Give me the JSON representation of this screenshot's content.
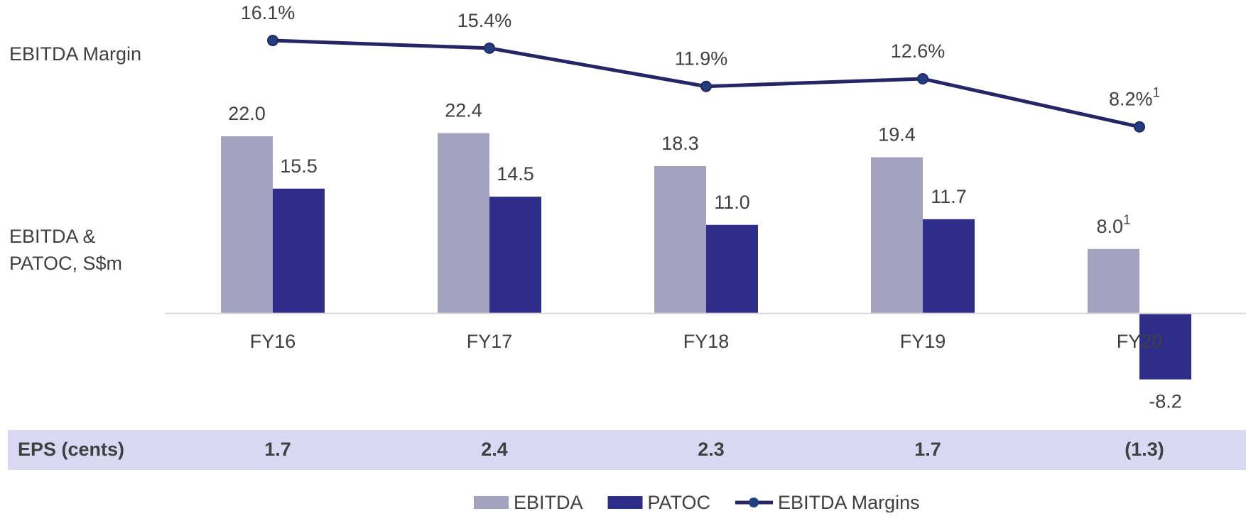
{
  "chart_data": {
    "type": "bar_line",
    "y_label": "EBITDA & PATOC, S$m",
    "y2_label": "EBITDA Margin",
    "categories": [
      "FY16",
      "FY17",
      "FY18",
      "FY19",
      "FY20"
    ],
    "ylim": [
      -10,
      25
    ],
    "y2lim": [
      0,
      20
    ],
    "series": [
      {
        "name": "EBITDA",
        "color": "#a3a3bf",
        "values": [
          22.0,
          22.4,
          18.3,
          19.4,
          8.0
        ],
        "value_labels": [
          "22.0",
          "22.4",
          "18.3",
          "19.4",
          "8.0"
        ],
        "notes": [
          null,
          null,
          null,
          null,
          "1"
        ]
      },
      {
        "name": "PATOC",
        "color": "#2e2e8a",
        "values": [
          15.5,
          14.5,
          11.0,
          11.7,
          -8.2
        ],
        "value_labels": [
          "15.5",
          "14.5",
          "11.0",
          "11.7",
          "-8.2"
        ]
      },
      {
        "name": "EBITDA Margins",
        "type": "line",
        "axis": "y2",
        "color": "#262666",
        "marker_color": "#1f3f7f",
        "values": [
          16.1,
          15.4,
          11.9,
          12.6,
          8.2
        ],
        "value_labels": [
          "16.1%",
          "15.4%",
          "11.9%",
          "12.6%",
          "8.2%"
        ],
        "notes": [
          null,
          null,
          null,
          null,
          "1"
        ]
      }
    ],
    "eps": {
      "label": "EPS (cents)",
      "values": [
        "1.7",
        "2.4",
        "2.3",
        "1.7",
        "(1.3)"
      ]
    },
    "legend": "bottom"
  }
}
